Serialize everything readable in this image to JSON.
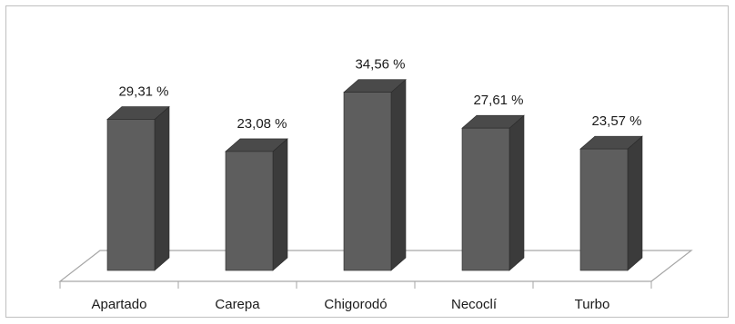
{
  "chart_data": {
    "type": "bar",
    "style": "3d-column",
    "categories": [
      "Apartado",
      "Carepa",
      "Chigorodó",
      "Necoclí",
      "Turbo"
    ],
    "values": [
      29.31,
      23.08,
      34.56,
      27.61,
      23.57
    ],
    "value_labels": [
      "29,31 %",
      "23,08 %",
      "34,56 %",
      "27,61 %",
      "23,57 %"
    ],
    "title": "",
    "xlabel": "",
    "ylabel": "",
    "unit": "%",
    "grid": false,
    "legend": "none",
    "colors": {
      "front": "#5e5e5e",
      "side": "#3b3b3b",
      "top": "#4a4a4a",
      "floor_line": "#a6a6a6",
      "frame": "#bfbfbf"
    }
  }
}
